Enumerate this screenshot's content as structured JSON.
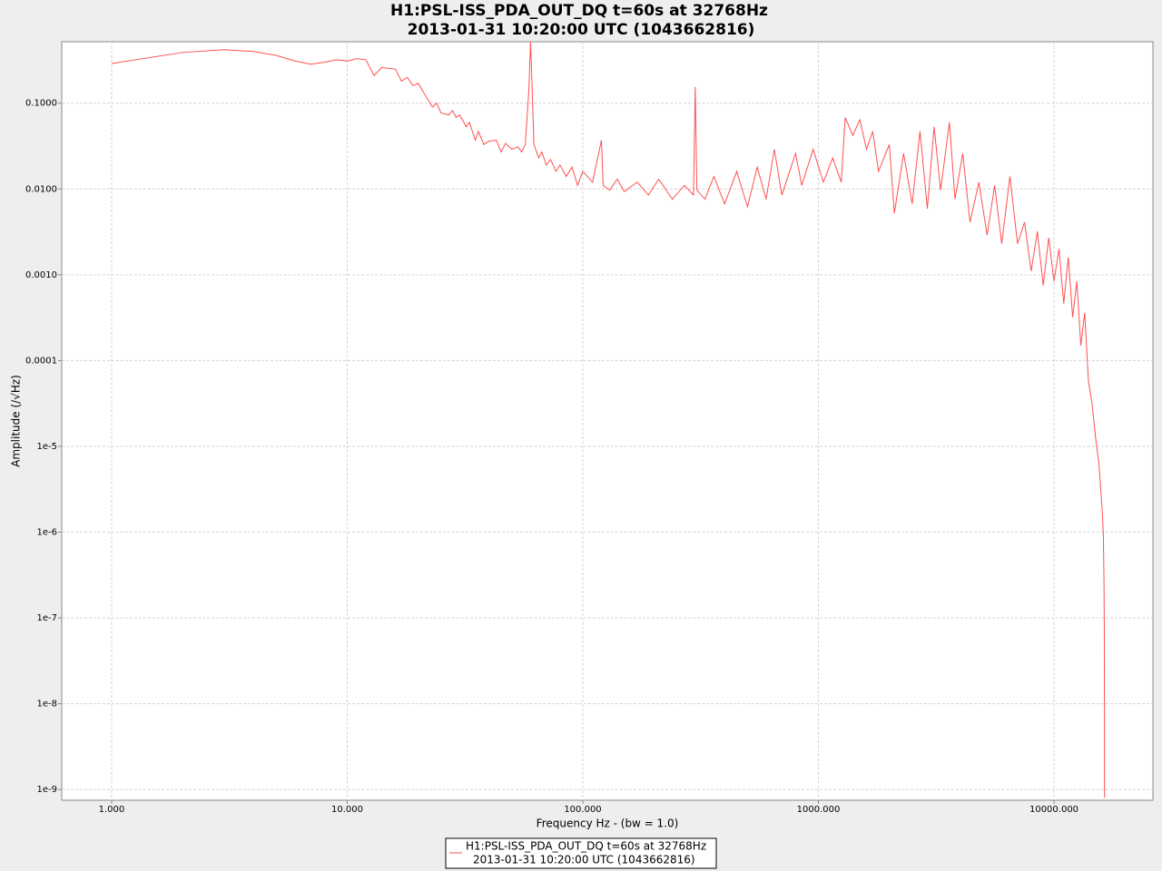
{
  "chart_data": {
    "type": "line",
    "title": "H1:PSL-ISS_PDA_OUT_DQ t=60s at 32768Hz",
    "subtitle": "2013-01-31 10:20:00 UTC (1043662816)",
    "x_label": "Frequency Hz - (bw = 1.0)",
    "y_label": "Amplitude  (/√Hz)",
    "x_log": true,
    "y_log": true,
    "grid": true,
    "legend": "bottom",
    "xlim": [
      0.614,
      26300
    ],
    "ylim": [
      7.5e-10,
      0.52
    ],
    "xticks": [
      {
        "value": 1,
        "label": "1.000"
      },
      {
        "value": 10,
        "label": "10.000"
      },
      {
        "value": 100,
        "label": "100.000"
      },
      {
        "value": 1000,
        "label": "1000.000"
      },
      {
        "value": 10000,
        "label": "10000.000"
      }
    ],
    "yticks": [
      {
        "value": 0.1,
        "label": "0.1000"
      },
      {
        "value": 0.01,
        "label": "0.0100"
      },
      {
        "value": 0.001,
        "label": "0.0010"
      },
      {
        "value": 0.0001,
        "label": "0.0001"
      },
      {
        "value": 1e-05,
        "label": "1e-5"
      },
      {
        "value": 1e-06,
        "label": "1e-6"
      },
      {
        "value": 1e-07,
        "label": "1e-7"
      },
      {
        "value": 1e-08,
        "label": "1e-8"
      },
      {
        "value": 1e-09,
        "label": "1e-9"
      }
    ],
    "series": [
      {
        "name": "H1:PSL-ISS_PDA_OUT_DQ t=60s at 32768Hz",
        "color": "#ff5050",
        "x": [
          1,
          2,
          3,
          4,
          5,
          6,
          7,
          8,
          9,
          10,
          11,
          12,
          13,
          14,
          16,
          17,
          18,
          19,
          20,
          22,
          23,
          24,
          25,
          27,
          28,
          29,
          30,
          32,
          33,
          35,
          36,
          38,
          40,
          43,
          45,
          47,
          50,
          53,
          55,
          57,
          59,
          60,
          61,
          62,
          65,
          67,
          70,
          73,
          77,
          80,
          85,
          90,
          95,
          100,
          110,
          120,
          122,
          130,
          140,
          150,
          170,
          190,
          210,
          240,
          270,
          295,
          300,
          305,
          330,
          360,
          400,
          450,
          500,
          550,
          600,
          650,
          700,
          800,
          850,
          950,
          1050,
          1150,
          1250,
          1300,
          1400,
          1500,
          1600,
          1700,
          1800,
          2000,
          2100,
          2300,
          2500,
          2700,
          2900,
          3100,
          3300,
          3600,
          3800,
          4100,
          4400,
          4800,
          5200,
          5600,
          6000,
          6500,
          7000,
          7500,
          8000,
          8500,
          9000,
          9500,
          10000,
          10500,
          11000,
          11500,
          12000,
          12500,
          13000,
          13500,
          14000,
          14500,
          15000,
          15500,
          16000,
          16200,
          16300,
          16350,
          16380,
          16384
        ],
        "values": [
          0.29,
          0.39,
          0.42,
          0.4,
          0.36,
          0.31,
          0.285,
          0.3,
          0.32,
          0.31,
          0.33,
          0.32,
          0.21,
          0.26,
          0.25,
          0.18,
          0.2,
          0.16,
          0.17,
          0.11,
          0.09,
          0.1,
          0.077,
          0.073,
          0.082,
          0.068,
          0.073,
          0.053,
          0.06,
          0.037,
          0.047,
          0.033,
          0.036,
          0.037,
          0.027,
          0.034,
          0.029,
          0.031,
          0.027,
          0.033,
          0.14,
          0.52,
          0.14,
          0.033,
          0.023,
          0.027,
          0.019,
          0.022,
          0.016,
          0.019,
          0.014,
          0.018,
          0.011,
          0.016,
          0.012,
          0.037,
          0.011,
          0.0097,
          0.013,
          0.0093,
          0.012,
          0.0085,
          0.013,
          0.0076,
          0.011,
          0.0085,
          0.155,
          0.0097,
          0.0076,
          0.014,
          0.0067,
          0.016,
          0.0062,
          0.018,
          0.0076,
          0.029,
          0.0085,
          0.026,
          0.011,
          0.029,
          0.012,
          0.023,
          0.012,
          0.068,
          0.042,
          0.064,
          0.029,
          0.047,
          0.016,
          0.033,
          0.0052,
          0.026,
          0.0067,
          0.047,
          0.0059,
          0.053,
          0.0097,
          0.06,
          0.0076,
          0.026,
          0.0041,
          0.012,
          0.0029,
          0.011,
          0.0023,
          0.014,
          0.0023,
          0.0041,
          0.0011,
          0.0032,
          0.00075,
          0.0027,
          0.00084,
          0.002,
          0.00046,
          0.0016,
          0.00032,
          0.00084,
          0.00015,
          0.00036,
          5.8e-05,
          3.2e-05,
          1.3e-05,
          6.5e-06,
          1.9e-06,
          9.4e-07,
          2.8e-07,
          8e-08,
          7.3e-09,
          8e-10
        ]
      }
    ]
  }
}
